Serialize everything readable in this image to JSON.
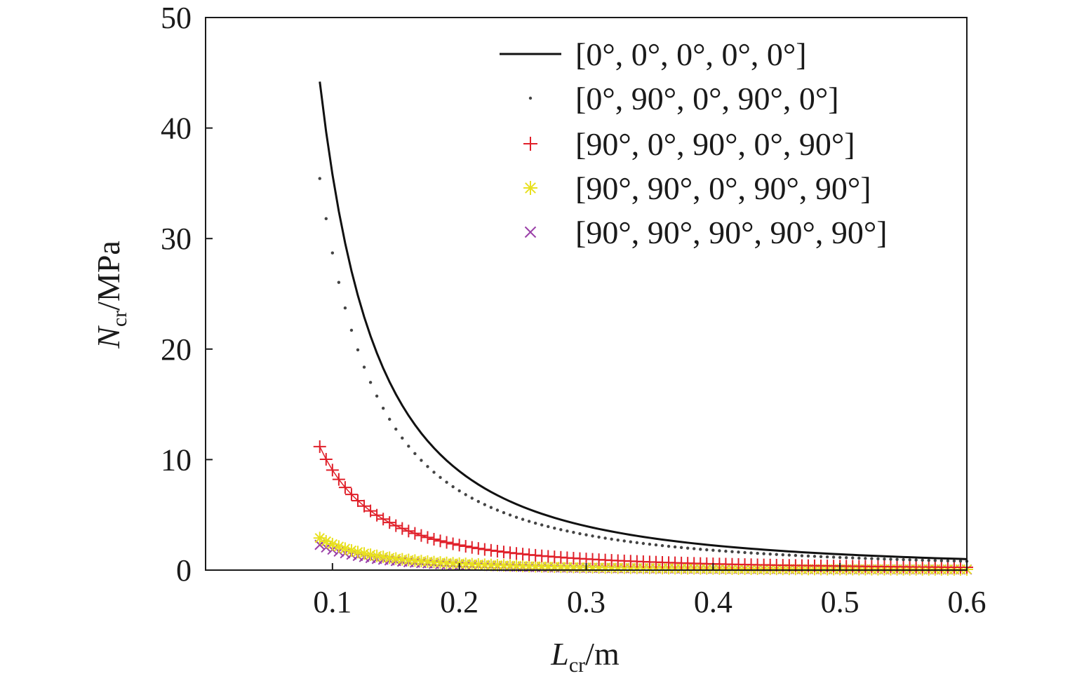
{
  "chart_data": {
    "type": "line",
    "xlabel": {
      "main": "L",
      "sub": "cr",
      "unit": "/m"
    },
    "ylabel": {
      "main": "N",
      "sub": "cr",
      "unit": "/MPa"
    },
    "xlim": [
      0,
      0.6
    ],
    "ylim": [
      0,
      50
    ],
    "xticks": [
      0.1,
      0.2,
      0.3,
      0.4,
      0.5,
      0.6
    ],
    "xtick_labels": [
      "0.1",
      "0.2",
      "0.3",
      "0.4",
      "0.5",
      "0.6"
    ],
    "yticks": [
      0,
      10,
      20,
      30,
      40,
      50
    ],
    "ytick_labels": [
      "0",
      "10",
      "20",
      "30",
      "40",
      "50"
    ],
    "grid": false,
    "legend_position": "top-right",
    "series": [
      {
        "name": "[0°, 0°, 0°, 0°, 0°]",
        "marker": "line",
        "color": "#111111",
        "x_start": 0.09,
        "x_end": 0.6,
        "step": 0.005,
        "law": "c/x^2",
        "c": 0.358,
        "points_note": "N = 44.2 at L = 0.09, N = 1.0 at L = 0.6"
      },
      {
        "name": "[0°, 90°, 0°, 90°, 0°]",
        "marker": "dot",
        "color": "#444444",
        "x_start": 0.09,
        "x_end": 0.6,
        "step": 0.005,
        "law": "c/x^2",
        "c": 0.287
      },
      {
        "name": "[90°, 0°, 90°, 0°, 90°]",
        "marker": "plus",
        "color": "#e0202a",
        "x_start": 0.09,
        "x_end": 0.6,
        "step": 0.005,
        "law": "c/x^2",
        "c": 0.0905
      },
      {
        "name": "[90°, 90°, 0°, 90°, 90°]",
        "marker": "asterisk",
        "color": "#e8e020",
        "x_start": 0.09,
        "x_end": 0.6,
        "step": 0.005,
        "law": "c/x^2",
        "c": 0.0235
      },
      {
        "name": "[90°, 90°, 90°, 90°, 90°]",
        "marker": "cross",
        "color": "#9a3fa8",
        "x_start": 0.09,
        "x_end": 0.6,
        "step": 0.005,
        "law": "c/x^2",
        "c": 0.0185
      }
    ]
  }
}
